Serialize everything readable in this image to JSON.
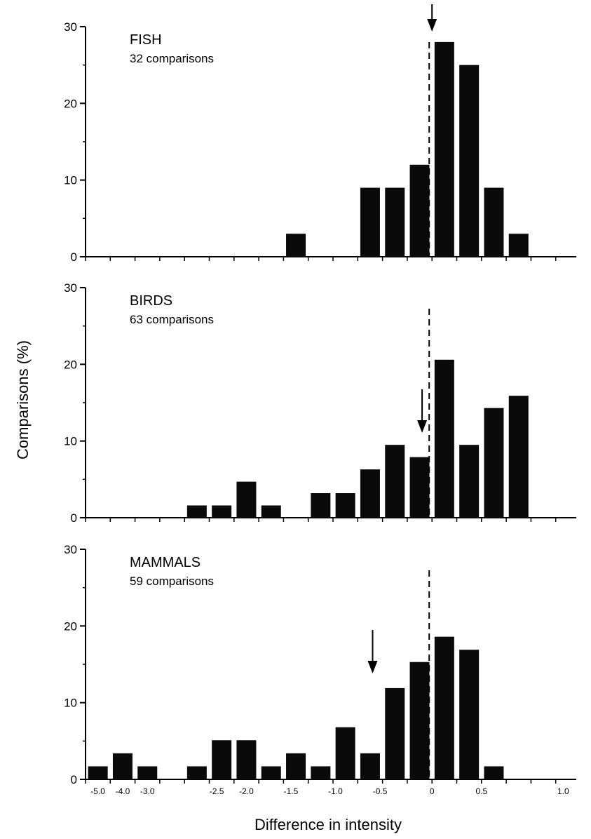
{
  "chart_data": {
    "type": "bar",
    "xlabel": "Difference in intensity",
    "ylabel": "Comparisons (%)",
    "ylim": [
      0,
      30
    ],
    "yticks": [
      "0",
      "10",
      "20",
      "30"
    ],
    "xtick_labels": [
      "-5.0",
      "-4.0",
      "-3.0",
      "-2.5",
      "-2.0",
      "-1.5",
      "-1.0",
      "-0.5",
      "0",
      "0.5",
      "1.0"
    ],
    "panels": [
      {
        "title": "FISH",
        "subtitle": "32 comparisons",
        "bins": [
          {
            "bin": 8,
            "value": 3
          },
          {
            "bin": 11,
            "value": 9
          },
          {
            "bin": 12,
            "value": 9
          },
          {
            "bin": 13,
            "value": 12
          },
          {
            "bin": 14,
            "value": 28
          },
          {
            "bin": 15,
            "value": 25
          },
          {
            "bin": 16,
            "value": 9
          },
          {
            "bin": 17,
            "value": 3
          }
        ],
        "arrow_x": 0.0
      },
      {
        "title": "BIRDS",
        "subtitle": "63 comparisons",
        "bins": [
          {
            "bin": 4,
            "value": 1.6
          },
          {
            "bin": 5,
            "value": 1.6
          },
          {
            "bin": 6,
            "value": 4.7
          },
          {
            "bin": 7,
            "value": 1.6
          },
          {
            "bin": 9,
            "value": 3.2
          },
          {
            "bin": 10,
            "value": 3.2
          },
          {
            "bin": 11,
            "value": 6.3
          },
          {
            "bin": 12,
            "value": 9.5
          },
          {
            "bin": 13,
            "value": 7.9
          },
          {
            "bin": 14,
            "value": 20.6
          },
          {
            "bin": 15,
            "value": 9.5
          },
          {
            "bin": 16,
            "value": 14.3
          },
          {
            "bin": 17,
            "value": 15.9
          }
        ],
        "arrow_x": -0.1
      },
      {
        "title": "MAMMALS",
        "subtitle": "59 comparisons",
        "bins": [
          {
            "bin": 0,
            "value": 1.7
          },
          {
            "bin": 1,
            "value": 3.4
          },
          {
            "bin": 2,
            "value": 1.7
          },
          {
            "bin": 4,
            "value": 1.7
          },
          {
            "bin": 5,
            "value": 5.1
          },
          {
            "bin": 6,
            "value": 5.1
          },
          {
            "bin": 7,
            "value": 1.7
          },
          {
            "bin": 8,
            "value": 3.4
          },
          {
            "bin": 9,
            "value": 1.7
          },
          {
            "bin": 10,
            "value": 6.8
          },
          {
            "bin": 11,
            "value": 3.4
          },
          {
            "bin": 12,
            "value": 11.9
          },
          {
            "bin": 13,
            "value": 15.3
          },
          {
            "bin": 14,
            "value": 18.6
          },
          {
            "bin": 15,
            "value": 16.9
          },
          {
            "bin": 16,
            "value": 1.7
          }
        ],
        "arrow_x": -0.6
      }
    ]
  }
}
